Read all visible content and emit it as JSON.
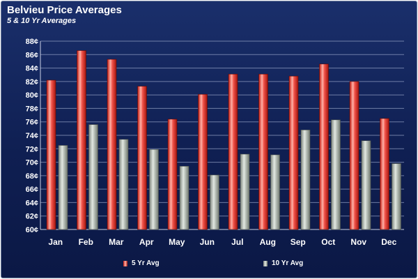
{
  "chart_data": {
    "type": "bar",
    "title": "Belvieu Price Averages",
    "subtitle": "5 & 10 Yr Averages",
    "categories": [
      "Jan",
      "Feb",
      "Mar",
      "Apr",
      "May",
      "Jun",
      "Jul",
      "Aug",
      "Sep",
      "Oct",
      "Nov",
      "Dec"
    ],
    "series": [
      {
        "name": "5 Yr Avg",
        "color": "#e8463c",
        "values": [
          82.2,
          86.6,
          85.3,
          81.3,
          76.4,
          80.1,
          83.1,
          83.1,
          82.8,
          84.6,
          82.0,
          76.5
        ]
      },
      {
        "name": "10 Yr Avg",
        "color": "#aeb6ae",
        "values": [
          72.5,
          75.6,
          73.4,
          71.9,
          69.4,
          68.1,
          71.2,
          71.1,
          74.8,
          76.3,
          73.2,
          69.8
        ]
      }
    ],
    "ylim": [
      60,
      88
    ],
    "ytick_labels": [
      "60¢",
      "62¢",
      "64¢",
      "66¢",
      "68¢",
      "70¢",
      "72¢",
      "74¢",
      "76¢",
      "78¢",
      "80¢",
      "82¢",
      "84¢",
      "86¢",
      "88¢"
    ],
    "ytick_values": [
      60,
      62,
      64,
      66,
      68,
      70,
      72,
      74,
      76,
      78,
      80,
      82,
      84,
      86,
      88
    ],
    "grid": true,
    "legend_position": "bottom"
  }
}
